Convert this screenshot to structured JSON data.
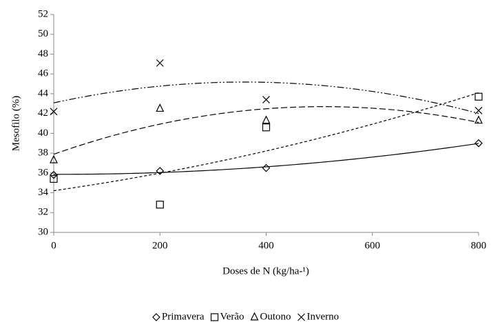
{
  "chart_data": {
    "type": "scatter",
    "x_label": "Doses de N (kg/ha-¹)",
    "y_label": "Mesofilo (%)",
    "x": [
      0,
      200,
      400,
      800
    ],
    "series": [
      {
        "name": "Primavera",
        "color": "#000000",
        "marker": "diamond",
        "trendline": "solid",
        "values": [
          35.8,
          36.2,
          36.5,
          39.0
        ]
      },
      {
        "name": "Verão",
        "color": "#000000",
        "marker": "square",
        "trendline": "dotted",
        "values": [
          35.4,
          32.8,
          40.6,
          43.7
        ]
      },
      {
        "name": "Outono",
        "color": "#000000",
        "marker": "triangle",
        "trendline": "dashed",
        "values": [
          37.3,
          42.5,
          41.3,
          41.3
        ]
      },
      {
        "name": "Inverno",
        "color": "#000000",
        "marker": "cross",
        "trendline": "dash-dot-dot",
        "values": [
          42.2,
          47.1,
          43.4,
          42.3
        ]
      }
    ],
    "trendline_order": 2,
    "xlim": [
      0,
      800
    ],
    "xticks": [
      0,
      200,
      400,
      600,
      800
    ],
    "ylim": [
      30,
      52
    ],
    "yticks": [
      30,
      32,
      34,
      36,
      38,
      40,
      42,
      44,
      46,
      48,
      50,
      52
    ],
    "grid": false,
    "legend": "bottom"
  }
}
